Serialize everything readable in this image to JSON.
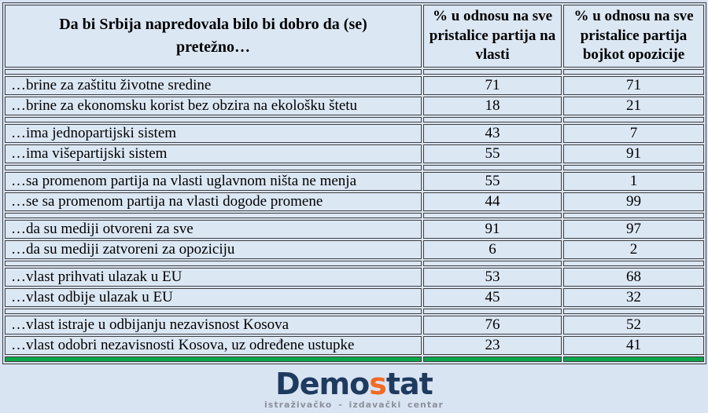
{
  "colors": {
    "page_background": "#d9e4f3",
    "cell_background": "#dce7f4",
    "border": "#3f3f3f",
    "green_bar": "#0aa648",
    "logo_navy": "#1e3a5e",
    "logo_orange": "#f26a24",
    "logo_gray": "#8b919b",
    "text": "#000000"
  },
  "logo": {
    "part1": "Demo",
    "part2": "s",
    "part3": "tat",
    "subtitle": "istraživačko - izdavački centar"
  },
  "chart_data": {
    "type": "table",
    "title": "Da bi Srbija napredovala bilo bi dobro da (se) pretežno…",
    "columns": [
      "Da bi Srbija napredovala bilo bi dobro da (se) pretežno…",
      "% u odnosu na sve pristalice partija na vlasti",
      "% u odnosu na sve pristalice partija bojkot opozicije"
    ],
    "groups": [
      {
        "rows": [
          [
            "…brine za zaštitu životne sredine",
            71,
            71
          ],
          [
            "…brine za ekonomsku korist bez obzira na ekološku štetu",
            18,
            21
          ]
        ]
      },
      {
        "rows": [
          [
            "…ima jednopartijski sistem",
            43,
            7
          ],
          [
            "…ima višepartijski sistem",
            55,
            91
          ]
        ]
      },
      {
        "rows": [
          [
            "…sa promenom partija na vlasti uglavnom ništa ne menja",
            55,
            1
          ],
          [
            "…se sa promenom partija na vlasti dogode promene",
            44,
            99
          ]
        ]
      },
      {
        "rows": [
          [
            "…da su mediji otvoreni za sve",
            91,
            97
          ],
          [
            "…da su mediji zatvoreni za opoziciju",
            6,
            2
          ]
        ]
      },
      {
        "rows": [
          [
            "…vlast prihvati ulazak u EU",
            53,
            68
          ],
          [
            "…vlast odbije ulazak u EU",
            45,
            32
          ]
        ]
      },
      {
        "rows": [
          [
            "…vlast istraje u odbijanju nezavisnost Kosova",
            76,
            52
          ],
          [
            "…vlast odobri nezavisnosti Kosova, uz određene ustupke",
            23,
            41
          ]
        ]
      }
    ]
  }
}
